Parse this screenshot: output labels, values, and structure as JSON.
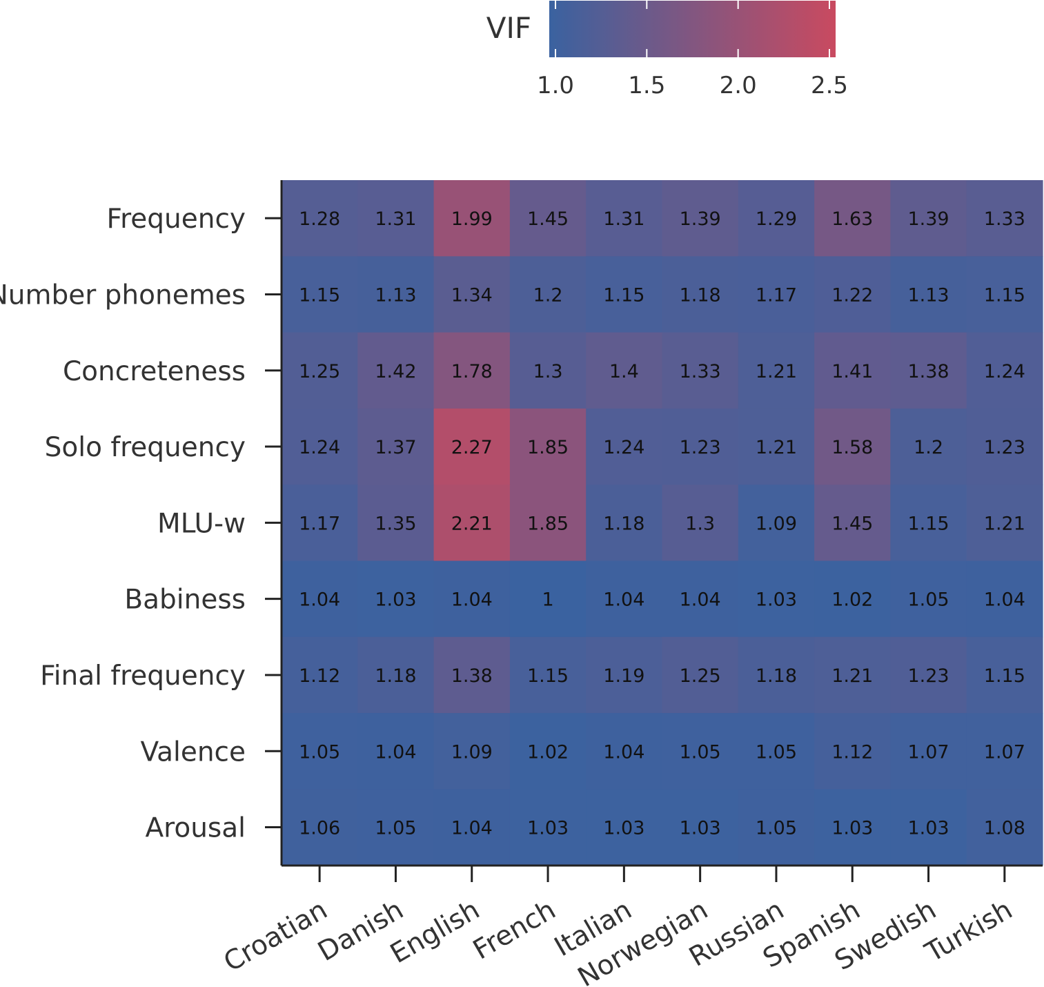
{
  "chart_data": {
    "type": "heatmap",
    "title": "",
    "xlabel": "",
    "ylabel": "",
    "rows": [
      "Frequency",
      "Number phonemes",
      "Concreteness",
      "Solo frequency",
      "MLU-w",
      "Babiness",
      "Final frequency",
      "Valence",
      "Arousal"
    ],
    "columns": [
      "Croatian",
      "Danish",
      "English",
      "French",
      "Italian",
      "Norwegian",
      "Russian",
      "Spanish",
      "Swedish",
      "Turkish"
    ],
    "values": [
      [
        1.28,
        1.31,
        1.99,
        1.45,
        1.31,
        1.39,
        1.29,
        1.63,
        1.39,
        1.33
      ],
      [
        1.15,
        1.13,
        1.34,
        1.2,
        1.15,
        1.18,
        1.17,
        1.22,
        1.13,
        1.15
      ],
      [
        1.25,
        1.42,
        1.78,
        1.3,
        1.4,
        1.33,
        1.21,
        1.41,
        1.38,
        1.24
      ],
      [
        1.24,
        1.37,
        2.27,
        1.85,
        1.24,
        1.23,
        1.21,
        1.58,
        1.2,
        1.23
      ],
      [
        1.17,
        1.35,
        2.21,
        1.85,
        1.18,
        1.3,
        1.09,
        1.45,
        1.15,
        1.21
      ],
      [
        1.04,
        1.03,
        1.04,
        1,
        1.04,
        1.04,
        1.03,
        1.02,
        1.05,
        1.04
      ],
      [
        1.12,
        1.18,
        1.38,
        1.15,
        1.19,
        1.25,
        1.18,
        1.21,
        1.23,
        1.15
      ],
      [
        1.05,
        1.04,
        1.09,
        1.02,
        1.04,
        1.05,
        1.05,
        1.12,
        1.07,
        1.07
      ],
      [
        1.06,
        1.05,
        1.04,
        1.03,
        1.03,
        1.03,
        1.05,
        1.03,
        1.03,
        1.08
      ]
    ],
    "colorbar": {
      "label": "VIF",
      "min": 1.0,
      "max": 2.5,
      "ticks": [
        "1.0",
        "1.5",
        "2.0",
        "2.5"
      ],
      "low_color": "#3a62a0",
      "high_color": "#c94a60"
    },
    "legend_placement": "top"
  }
}
